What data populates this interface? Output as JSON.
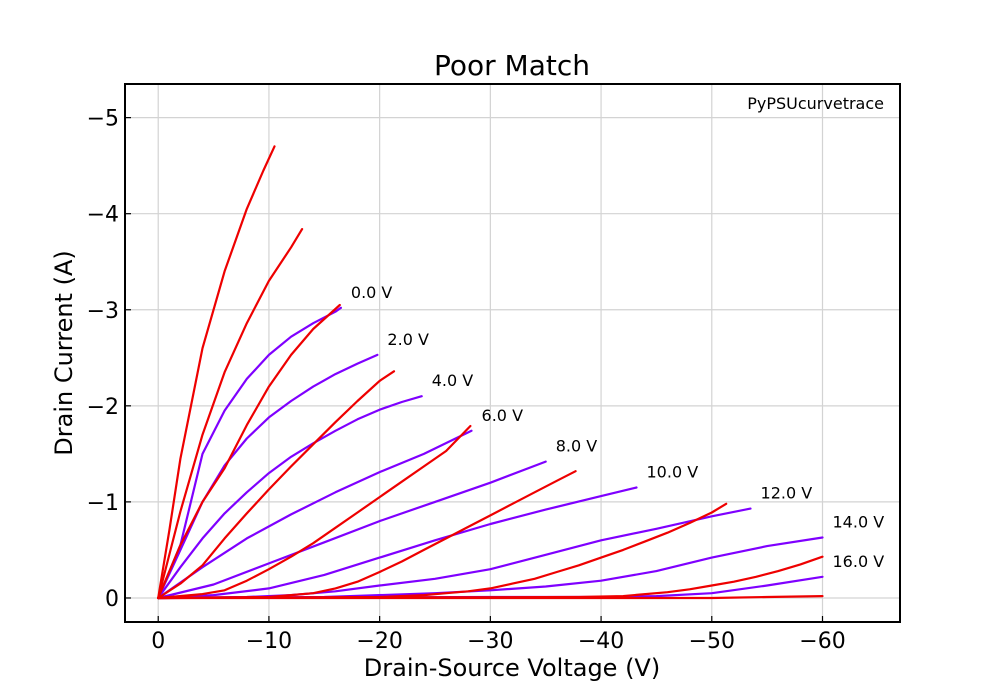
{
  "chart_data": {
    "type": "line",
    "title": "Poor Match",
    "annotation": "PyPSUcurvetrace",
    "xlabel": "Drain-Source Voltage (V)",
    "ylabel": "Drain Current (A)",
    "xlim": [
      3,
      -67
    ],
    "ylim": [
      0.25,
      -5.35
    ],
    "xticks": [
      0,
      -10,
      -20,
      -30,
      -40,
      -50,
      -60
    ],
    "yticks": [
      0,
      -1,
      -2,
      -3,
      -4,
      -5
    ],
    "xtick_labels": [
      "0",
      "−10",
      "−20",
      "−30",
      "−40",
      "−50",
      "−60"
    ],
    "ytick_labels": [
      "0",
      "−1",
      "−2",
      "−3",
      "−4",
      "−5"
    ],
    "grid": true,
    "colors": {
      "set_a": "#ee0000",
      "set_b": "#7f00ff"
    },
    "series": [
      {
        "name": "0.0 V",
        "group": "b",
        "x": [
          0,
          -2,
          -4,
          -6,
          -8,
          -10,
          -12,
          -14,
          -16,
          -16.5
        ],
        "y": [
          0,
          -0.55,
          -1.5,
          -1.95,
          -2.28,
          -2.53,
          -2.72,
          -2.86,
          -2.98,
          -3.02
        ]
      },
      {
        "name": "2.0 V",
        "group": "b",
        "x": [
          0,
          -2,
          -4,
          -6,
          -8,
          -10,
          -12,
          -14,
          -16,
          -18,
          -19.8
        ],
        "y": [
          0,
          -0.5,
          -1.0,
          -1.38,
          -1.66,
          -1.88,
          -2.05,
          -2.2,
          -2.33,
          -2.44,
          -2.53
        ]
      },
      {
        "name": "4.0 V",
        "group": "b",
        "x": [
          0,
          -2,
          -4,
          -6,
          -8,
          -10,
          -12,
          -14,
          -16,
          -18,
          -20,
          -22,
          -23.8
        ],
        "y": [
          0,
          -0.32,
          -0.62,
          -0.88,
          -1.1,
          -1.3,
          -1.47,
          -1.61,
          -1.74,
          -1.86,
          -1.96,
          -2.04,
          -2.1
        ]
      },
      {
        "name": "6.0 V",
        "group": "b",
        "x": [
          0,
          -4,
          -8,
          -12,
          -16,
          -20,
          -24,
          -28.3
        ],
        "y": [
          0,
          -0.32,
          -0.62,
          -0.87,
          -1.1,
          -1.31,
          -1.5,
          -1.74
        ]
      },
      {
        "name": "8.0 V",
        "group": "b",
        "x": [
          0,
          -5,
          -10,
          -15,
          -20,
          -25,
          -30,
          -35
        ],
        "y": [
          0,
          -0.14,
          -0.36,
          -0.58,
          -0.8,
          -1.0,
          -1.2,
          -1.42
        ]
      },
      {
        "name": "10.0 V",
        "group": "b",
        "x": [
          0,
          -5,
          -10,
          -15,
          -20,
          -25,
          -30,
          -35,
          -40,
          -43.2
        ],
        "y": [
          0,
          -0.03,
          -0.1,
          -0.24,
          -0.42,
          -0.6,
          -0.77,
          -0.92,
          -1.06,
          -1.15
        ]
      },
      {
        "name": "12.0 V",
        "group": "b",
        "x": [
          0,
          -8,
          -12,
          -16,
          -20,
          -25,
          -30,
          -35,
          -40,
          -45,
          -50,
          -53.5
        ],
        "y": [
          0,
          -0.01,
          -0.03,
          -0.07,
          -0.13,
          -0.2,
          -0.3,
          -0.45,
          -0.6,
          -0.72,
          -0.85,
          -0.93
        ]
      },
      {
        "name": "14.0 V",
        "group": "b",
        "x": [
          0,
          -15,
          -20,
          -25,
          -30,
          -35,
          -40,
          -45,
          -50,
          -55,
          -60
        ],
        "y": [
          0,
          -0.01,
          -0.03,
          -0.05,
          -0.08,
          -0.12,
          -0.18,
          -0.28,
          -0.42,
          -0.54,
          -0.63
        ]
      },
      {
        "name": "16.0 V",
        "group": "b",
        "x": [
          0,
          -30,
          -35,
          -40,
          -45,
          -50,
          -55,
          -60
        ],
        "y": [
          0,
          -0.01,
          -0.01,
          -0.01,
          -0.02,
          -0.05,
          -0.13,
          -0.22
        ]
      },
      {
        "name": "",
        "group": "a",
        "x": [
          0,
          -1,
          -2,
          -4,
          -6,
          -8,
          -9.5,
          -10.5
        ],
        "y": [
          0,
          -0.7,
          -1.45,
          -2.6,
          -3.4,
          -4.05,
          -4.45,
          -4.7
        ]
      },
      {
        "name": "",
        "group": "a",
        "x": [
          0,
          -2,
          -4,
          -6,
          -8,
          -10,
          -12,
          -13
        ],
        "y": [
          0,
          -0.9,
          -1.7,
          -2.35,
          -2.86,
          -3.3,
          -3.65,
          -3.84
        ]
      },
      {
        "name": "",
        "group": "a",
        "x": [
          0,
          -2,
          -4,
          -6,
          -8,
          -10,
          -12,
          -14,
          -16.4
        ],
        "y": [
          0,
          -0.55,
          -1.0,
          -1.35,
          -1.8,
          -2.2,
          -2.53,
          -2.8,
          -3.05
        ]
      },
      {
        "name": "",
        "group": "a",
        "x": [
          0,
          -2,
          -4,
          -6,
          -8,
          -10,
          -12,
          -14,
          -16,
          -18,
          -20,
          -21.3
        ],
        "y": [
          0,
          -0.15,
          -0.34,
          -0.62,
          -0.88,
          -1.13,
          -1.37,
          -1.6,
          -1.83,
          -2.05,
          -2.26,
          -2.36
        ]
      },
      {
        "name": "",
        "group": "a",
        "x": [
          0,
          -4,
          -6,
          -8,
          -10,
          -12,
          -14,
          -16,
          -18,
          -20,
          -22,
          -24,
          -26,
          -28.2
        ],
        "y": [
          0,
          -0.04,
          -0.08,
          -0.18,
          -0.3,
          -0.43,
          -0.57,
          -0.73,
          -0.89,
          -1.05,
          -1.21,
          -1.37,
          -1.53,
          -1.79
        ]
      },
      {
        "name": "",
        "group": "a",
        "x": [
          0,
          -10,
          -14,
          -16,
          -18,
          -20,
          -22,
          -24,
          -26,
          -28,
          -30,
          -32,
          -34,
          -36,
          -37.7
        ],
        "y": [
          0,
          -0.01,
          -0.05,
          -0.1,
          -0.17,
          -0.27,
          -0.38,
          -0.5,
          -0.62,
          -0.74,
          -0.86,
          -0.98,
          -1.1,
          -1.22,
          -1.32
        ]
      },
      {
        "name": "",
        "group": "a",
        "x": [
          0,
          -20,
          -24,
          -26,
          -28,
          -30,
          -32,
          -34,
          -36,
          -38,
          -40,
          -42,
          -44,
          -46,
          -48,
          -50,
          -51.3
        ],
        "y": [
          0,
          -0.01,
          -0.03,
          -0.05,
          -0.07,
          -0.1,
          -0.15,
          -0.2,
          -0.27,
          -0.34,
          -0.42,
          -0.5,
          -0.59,
          -0.68,
          -0.78,
          -0.89,
          -0.98
        ]
      },
      {
        "name": "",
        "group": "a",
        "x": [
          0,
          -38,
          -42,
          -44,
          -46,
          -48,
          -50,
          -52,
          -54,
          -56,
          -58,
          -60
        ],
        "y": [
          0,
          -0.01,
          -0.02,
          -0.04,
          -0.06,
          -0.09,
          -0.13,
          -0.17,
          -0.22,
          -0.28,
          -0.35,
          -0.43
        ]
      },
      {
        "name": "",
        "group": "a",
        "x": [
          0,
          -45,
          -50,
          -55,
          -60
        ],
        "y": [
          0,
          -0.0,
          -0.0,
          -0.01,
          -0.02
        ]
      }
    ]
  }
}
